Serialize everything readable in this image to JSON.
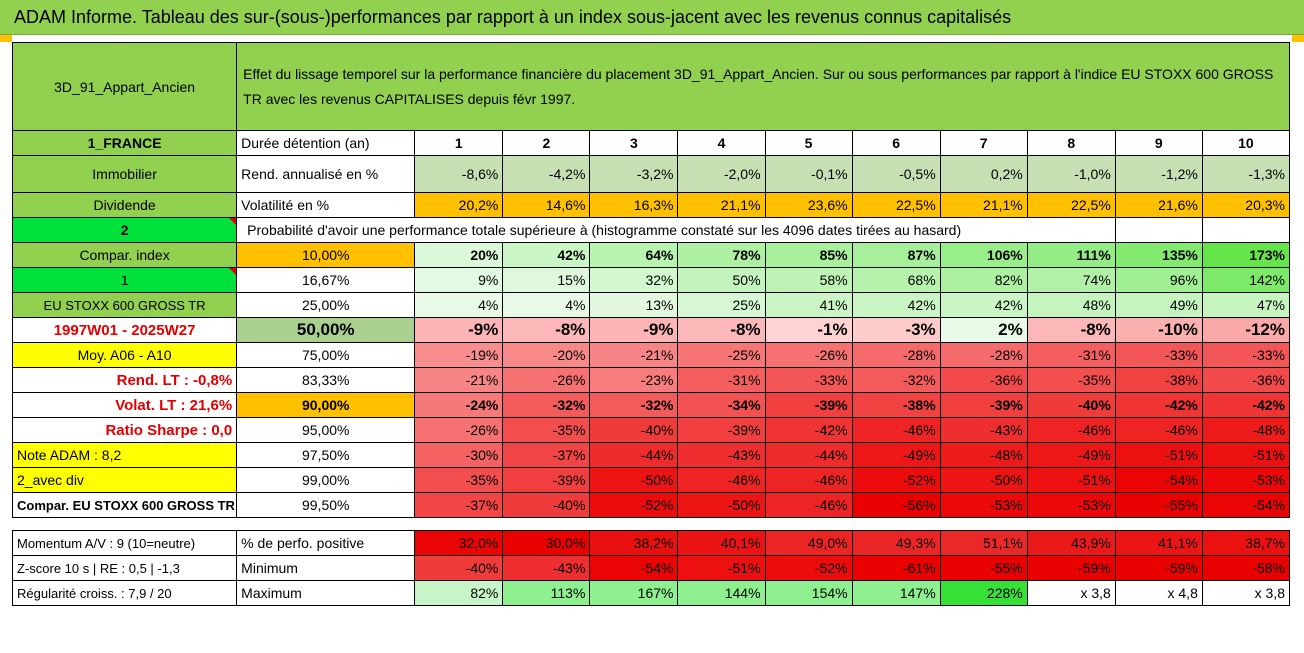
{
  "title": "ADAM Informe. Tableau des sur-(sous-)performances par rapport à un index sous-jacent avec les revenus connus capitalisés",
  "header": {
    "code": "3D_91_Appart_Ancien",
    "description": "Effet du lissage temporel sur la performance financière du placement 3D_91_Appart_Ancien. Sur ou sous performances par rapport à l'indice EU STOXX 600 GROSS TR avec les revenus CAPITALISES depuis févr 1997."
  },
  "rows": {
    "durations": {
      "left": "1_FRANCE",
      "label": "Durée détention (an)",
      "values": [
        "1",
        "2",
        "3",
        "4",
        "5",
        "6",
        "7",
        "8",
        "9",
        "10"
      ]
    },
    "returns": {
      "left": "Immobilier",
      "label": "Rend. annualisé en %",
      "values": [
        "-8,6%",
        "-4,2%",
        "-3,2%",
        "-2,0%",
        "-0,1%",
        "-0,5%",
        "0,2%",
        "-1,0%",
        "-1,2%",
        "-1,3%"
      ]
    },
    "volatility": {
      "left": "Dividende",
      "label": "Volatilité en %",
      "values": [
        "20,2%",
        "14,6%",
        "16,3%",
        "21,1%",
        "23,6%",
        "22,5%",
        "21,1%",
        "22,5%",
        "21,6%",
        "20,3%"
      ]
    },
    "prob_header": {
      "left": "2",
      "label": "Probabilité d'avoir une performance totale supérieure à (histogramme constaté sur les 4096 dates tirées au hasard)"
    },
    "quantiles": [
      {
        "left": "Compar. index",
        "pct": "10,00%",
        "values": [
          "20%",
          "42%",
          "64%",
          "78%",
          "85%",
          "87%",
          "106%",
          "111%",
          "135%",
          "173%"
        ]
      },
      {
        "left": "1",
        "pct": "16,67%",
        "values": [
          "9%",
          "15%",
          "32%",
          "50%",
          "58%",
          "68%",
          "82%",
          "74%",
          "96%",
          "142%"
        ]
      },
      {
        "left": "EU STOXX 600 GROSS TR",
        "pct": "25,00%",
        "values": [
          "4%",
          "4%",
          "13%",
          "25%",
          "41%",
          "42%",
          "42%",
          "48%",
          "49%",
          "47%"
        ]
      },
      {
        "left": "1997W01 - 2025W27",
        "pct": "50,00%",
        "values": [
          "-9%",
          "-8%",
          "-9%",
          "-8%",
          "-1%",
          "-3%",
          "2%",
          "-8%",
          "-10%",
          "-12%"
        ]
      },
      {
        "left": "Moy. A06 - A10",
        "pct": "75,00%",
        "values": [
          "-19%",
          "-20%",
          "-21%",
          "-25%",
          "-26%",
          "-28%",
          "-28%",
          "-31%",
          "-33%",
          "-33%"
        ]
      },
      {
        "left": "Rend. LT :    -0,8%",
        "pct": "83,33%",
        "values": [
          "-21%",
          "-26%",
          "-23%",
          "-31%",
          "-33%",
          "-32%",
          "-36%",
          "-35%",
          "-38%",
          "-36%"
        ]
      },
      {
        "left": "Volat. LT :    21,6%",
        "pct": "90,00%",
        "values": [
          "-24%",
          "-32%",
          "-32%",
          "-34%",
          "-39%",
          "-38%",
          "-39%",
          "-40%",
          "-42%",
          "-42%"
        ]
      },
      {
        "left": "Ratio Sharpe :    0,0",
        "pct": "95,00%",
        "values": [
          "-26%",
          "-35%",
          "-40%",
          "-39%",
          "-42%",
          "-46%",
          "-43%",
          "-46%",
          "-46%",
          "-48%"
        ]
      },
      {
        "left": "Note ADAM : 8,2",
        "pct": "97,50%",
        "values": [
          "-30%",
          "-37%",
          "-44%",
          "-43%",
          "-44%",
          "-49%",
          "-48%",
          "-49%",
          "-51%",
          "-51%"
        ]
      },
      {
        "left": "2_avec div",
        "pct": "99,00%",
        "values": [
          "-35%",
          "-39%",
          "-50%",
          "-46%",
          "-46%",
          "-52%",
          "-50%",
          "-51%",
          "-54%",
          "-53%"
        ]
      },
      {
        "left": "Compar. EU STOXX 600 GROSS TR",
        "pct": "99,50%",
        "values": [
          "-37%",
          "-40%",
          "-52%",
          "-50%",
          "-46%",
          "-56%",
          "-53%",
          "-53%",
          "-55%",
          "-54%"
        ]
      }
    ],
    "positive": {
      "left": "Momentum A/V : 9 (10=neutre)",
      "label": "% de perfo. positive",
      "values": [
        "32,0%",
        "30,0%",
        "38,2%",
        "40,1%",
        "49,0%",
        "49,3%",
        "51,1%",
        "43,9%",
        "41,1%",
        "38,7%"
      ]
    },
    "minimum": {
      "left": "Z-score 10 s | RE : 0,5 | -1,3",
      "label": "Minimum",
      "values": [
        "-40%",
        "-43%",
        "-54%",
        "-51%",
        "-52%",
        "-61%",
        "-55%",
        "-59%",
        "-59%",
        "-58%"
      ]
    },
    "maximum": {
      "left": "Régularité croiss. : 7,9 / 20",
      "label": "Maximum",
      "values": [
        "82%",
        "113%",
        "167%",
        "144%",
        "154%",
        "147%",
        "228%",
        "x 3,8",
        "x 4,8",
        "x 3,8"
      ]
    }
  },
  "colors": {
    "title_bg": "#92d050",
    "header_green": "#92d050",
    "light_green": "#a9d08e",
    "bright_green": "#00e13c",
    "yellow": "#ffff00",
    "orange": "#ffc000",
    "red": "#ff0000"
  }
}
